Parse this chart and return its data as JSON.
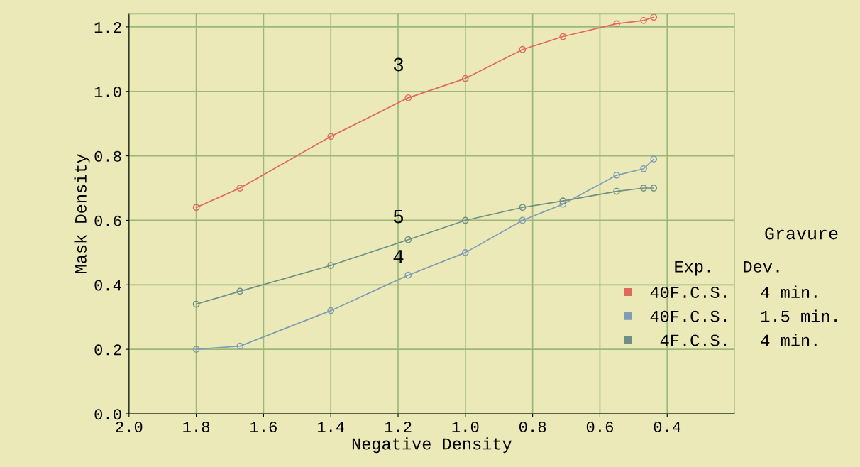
{
  "chart_data": {
    "type": "line",
    "xlabel": "Negative Density",
    "ylabel": "Mask Density",
    "legend_title": "Gravure",
    "x": [
      1.8,
      1.67,
      1.4,
      1.17,
      1.0,
      0.83,
      0.71,
      0.55,
      0.47,
      0.44
    ],
    "series": [
      {
        "name": "40F.C.S.   4 min.",
        "color": "#e06a5a",
        "values": [
          0.64,
          0.7,
          0.86,
          0.98,
          1.04,
          1.13,
          1.17,
          1.21,
          1.22,
          1.23
        ]
      },
      {
        "name": "40F.C.S.   1.5 min.",
        "color": "#7f9db5",
        "values": [
          0.2,
          0.21,
          0.32,
          0.43,
          0.5,
          0.6,
          0.65,
          0.74,
          0.76,
          0.79
        ]
      },
      {
        "name": " 4F.C.S.   4 min.",
        "color": "#6e8f86",
        "values": [
          0.34,
          0.38,
          0.46,
          0.54,
          0.6,
          0.64,
          0.66,
          0.69,
          0.7,
          0.7
        ]
      }
    ],
    "annotations": [
      "3",
      "5",
      "4",
      "Exp.",
      "Dev."
    ],
    "xlim": [
      2.0,
      0.2
    ],
    "ylim": [
      0.0,
      1.24
    ],
    "xticks": [
      {
        "value": 2,
        "label": "2.0"
      },
      1.8,
      1.6,
      1.4,
      1.2,
      {
        "value": 1,
        "label": "1.0"
      },
      0.8,
      0.6,
      0.4
    ],
    "yticks": [
      {
        "value": 0,
        "label": "0.0"
      },
      0.2,
      0.4,
      0.6,
      0.8,
      {
        "value": 1,
        "label": "1.0"
      },
      1.2
    ],
    "grid": true,
    "legend": "right",
    "marker": "circle",
    "line_style": "solid"
  }
}
